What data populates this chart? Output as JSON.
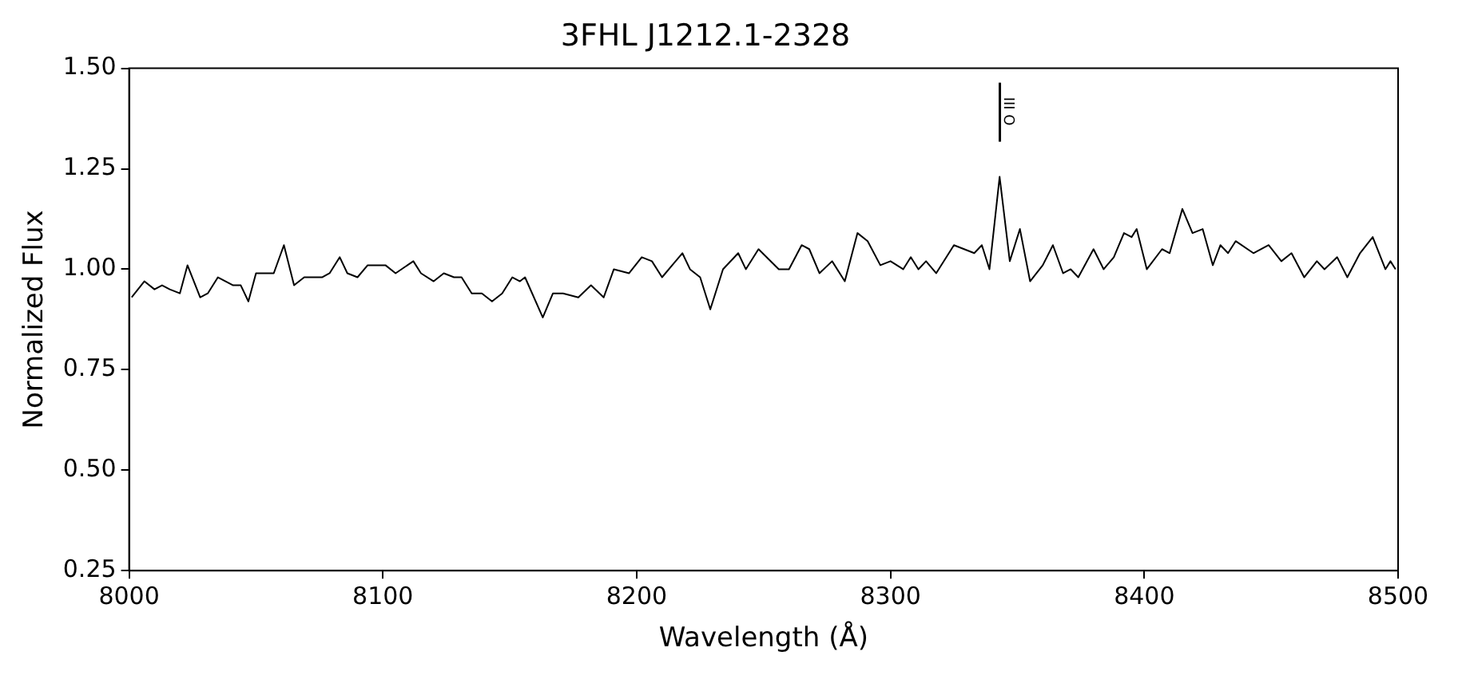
{
  "chart_data": {
    "type": "line",
    "title": "3FHL J1212.1-2328",
    "xlabel": "Wavelength (Å)",
    "ylabel": "Normalized Flux",
    "x": [
      8001,
      8006,
      8010,
      8013,
      8016,
      8020,
      8023,
      8028,
      8031,
      8035,
      8041,
      8044,
      8047,
      8050,
      8054,
      8057,
      8061,
      8065,
      8069,
      8076,
      8079,
      8083,
      8086,
      8090,
      8094,
      8097,
      8101,
      8105,
      8112,
      8115,
      8120,
      8124,
      8128,
      8131,
      8135,
      8139,
      8143,
      8147,
      8151,
      8154,
      8156,
      8163,
      8167,
      8171,
      8177,
      8182,
      8187,
      8191,
      8197,
      8202,
      8206,
      8210,
      8214,
      8218,
      8221,
      8225,
      8229,
      8234,
      8240,
      8243,
      8248,
      8256,
      8260,
      8265,
      8268,
      8272,
      8277,
      8282,
      8287,
      8291,
      8296,
      8300,
      8305,
      8308,
      8311,
      8314,
      8318,
      8325,
      8329,
      8333,
      8336,
      8339,
      8343,
      8347,
      8351,
      8355,
      8360,
      8364,
      8368,
      8371,
      8374,
      8380,
      8384,
      8388,
      8392,
      8395,
      8397,
      8401,
      8407,
      8410,
      8415,
      8419,
      8423,
      8427,
      8430,
      8433,
      8436,
      8443,
      8449,
      8454,
      8458,
      8463,
      8468,
      8471,
      8476,
      8480,
      8485,
      8490,
      8495,
      8497,
      8499
    ],
    "series": [
      {
        "color": "#000000",
        "values": [
          0.93,
          0.97,
          0.95,
          0.96,
          0.95,
          0.94,
          1.01,
          0.93,
          0.94,
          0.98,
          0.96,
          0.96,
          0.92,
          0.99,
          0.99,
          0.99,
          1.06,
          0.96,
          0.98,
          0.98,
          0.99,
          1.03,
          0.99,
          0.98,
          1.01,
          1.01,
          1.01,
          0.99,
          1.02,
          0.99,
          0.97,
          0.99,
          0.98,
          0.98,
          0.94,
          0.94,
          0.92,
          0.94,
          0.98,
          0.97,
          0.98,
          0.88,
          0.94,
          0.94,
          0.93,
          0.96,
          0.93,
          1.0,
          0.99,
          1.03,
          1.02,
          0.98,
          1.01,
          1.04,
          1.0,
          0.98,
          0.9,
          1.0,
          1.04,
          1.0,
          1.05,
          1.0,
          1.0,
          1.06,
          1.05,
          0.99,
          1.02,
          0.97,
          1.09,
          1.07,
          1.01,
          1.02,
          1.0,
          1.03,
          1.0,
          1.02,
          0.99,
          1.06,
          1.05,
          1.04,
          1.06,
          1.0,
          1.23,
          1.02,
          1.1,
          0.97,
          1.01,
          1.06,
          0.99,
          1.0,
          0.98,
          1.05,
          1.0,
          1.03,
          1.09,
          1.08,
          1.1,
          1.0,
          1.05,
          1.04,
          1.15,
          1.09,
          1.1,
          1.01,
          1.06,
          1.04,
          1.07,
          1.04,
          1.06,
          1.02,
          1.04,
          0.98,
          1.02,
          1.0,
          1.03,
          0.98,
          1.04,
          1.08,
          1.0,
          1.02,
          1.0
        ]
      }
    ],
    "xlim": [
      8000,
      8500
    ],
    "xticks": [
      8000,
      8100,
      8200,
      8300,
      8400,
      8500
    ],
    "ylim": [
      0.25,
      1.5
    ],
    "yticks": [
      {
        "value": 0.25,
        "label": "0.25"
      },
      {
        "value": 0.5,
        "label": "0.50"
      },
      {
        "value": 0.75,
        "label": "0.75"
      },
      {
        "value": 1.0,
        "label": "1.00"
      },
      {
        "value": 1.25,
        "label": "1.25"
      },
      {
        "value": 1.5,
        "label": "1.50"
      }
    ],
    "annotations": [
      "O III"
    ],
    "grid": false,
    "legend": false,
    "marker": "none",
    "line_style": "solid"
  }
}
